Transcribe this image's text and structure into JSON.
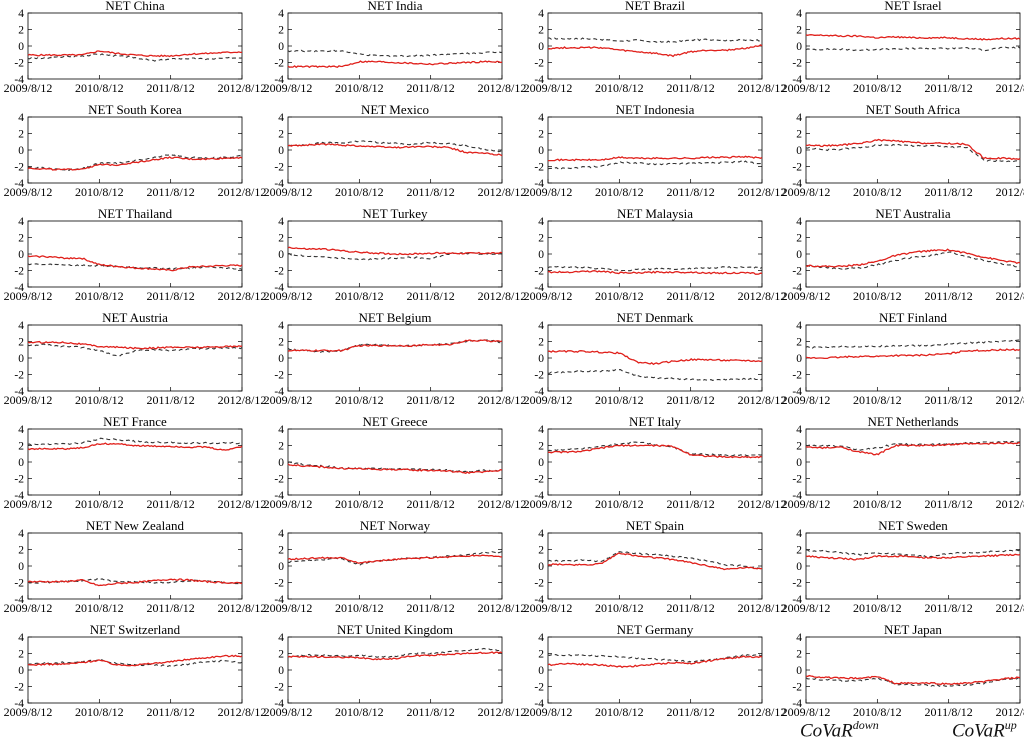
{
  "chart_data": {
    "type": "line",
    "x_ticks": [
      "2009/8/12",
      "2010/8/12",
      "2011/8/12",
      "2012/8/12"
    ],
    "ylim": [
      -4,
      4
    ],
    "y_ticks": [
      "4",
      "2",
      "0",
      "-2",
      "-4"
    ],
    "legend": {
      "placement": "bottom-right",
      "series": [
        {
          "name": "CoVaR",
          "sup": "down",
          "color": "#333333",
          "style": "dashed"
        },
        {
          "name": "CoVaR",
          "sup": "up",
          "color": "#e0201b",
          "style": "solid"
        }
      ]
    },
    "panels": [
      {
        "title": "NET China",
        "down": [
          -1.5,
          -1.5,
          -1.3,
          -1.2,
          -1.0,
          -1.2,
          -1.4,
          -1.8,
          -1.6,
          -1.5,
          -1.6,
          -1.5,
          -1.4
        ],
        "up": [
          -1.1,
          -1.1,
          -1.1,
          -1.1,
          -0.6,
          -0.9,
          -1.1,
          -1.2,
          -1.2,
          -1.0,
          -0.9,
          -0.8,
          -0.7
        ]
      },
      {
        "title": "NET India",
        "down": [
          -0.6,
          -0.6,
          -0.6,
          -0.6,
          -1.0,
          -1.2,
          -1.2,
          -1.2,
          -1.1,
          -1.0,
          -0.9,
          -0.8,
          -0.7
        ],
        "up": [
          -2.5,
          -2.5,
          -2.5,
          -2.5,
          -1.9,
          -1.9,
          -2.0,
          -2.1,
          -2.2,
          -2.1,
          -2.0,
          -1.9,
          -1.9
        ]
      },
      {
        "title": "NET Brazil",
        "down": [
          0.9,
          0.9,
          0.9,
          0.8,
          0.6,
          0.7,
          0.5,
          0.5,
          0.7,
          0.8,
          0.7,
          0.7,
          0.7
        ],
        "up": [
          -0.3,
          -0.2,
          -0.2,
          -0.2,
          -0.5,
          -0.7,
          -0.9,
          -1.2,
          -0.7,
          -0.5,
          -0.5,
          -0.3,
          0.1
        ]
      },
      {
        "title": "NET Israel",
        "down": [
          -0.4,
          -0.4,
          -0.4,
          -0.5,
          -0.4,
          -0.4,
          -0.3,
          -0.3,
          -0.3,
          -0.2,
          -0.5,
          -0.2,
          -0.2
        ],
        "up": [
          1.3,
          1.3,
          1.2,
          1.2,
          1.0,
          1.1,
          1.0,
          1.0,
          1.0,
          0.9,
          0.8,
          0.9,
          0.9
        ]
      },
      {
        "title": "NET South Korea",
        "down": [
          -2.1,
          -2.2,
          -2.4,
          -2.3,
          -1.6,
          -1.6,
          -1.3,
          -0.9,
          -0.6,
          -0.9,
          -1.0,
          -0.9,
          -0.7
        ],
        "up": [
          -2.2,
          -2.3,
          -2.4,
          -2.3,
          -1.8,
          -1.8,
          -1.5,
          -1.2,
          -0.9,
          -1.1,
          -1.1,
          -1.0,
          -0.9
        ]
      },
      {
        "title": "NET Mexico",
        "down": [
          0.5,
          0.6,
          0.9,
          0.8,
          1.1,
          0.9,
          0.8,
          0.7,
          0.9,
          0.8,
          0.5,
          0.1,
          -0.2
        ],
        "up": [
          0.5,
          0.6,
          0.7,
          0.6,
          0.5,
          0.4,
          0.3,
          0.4,
          0.4,
          0.3,
          -0.3,
          -0.4,
          -0.6
        ]
      },
      {
        "title": "NET Indonesia",
        "down": [
          -2.2,
          -2.2,
          -2.1,
          -2.0,
          -1.5,
          -1.6,
          -1.7,
          -1.7,
          -1.6,
          -1.6,
          -1.5,
          -1.4,
          -1.7
        ],
        "up": [
          -1.2,
          -1.2,
          -1.2,
          -1.2,
          -0.9,
          -1.0,
          -1.0,
          -1.0,
          -1.0,
          -0.9,
          -0.9,
          -0.8,
          -1.0
        ]
      },
      {
        "title": "NET South Africa",
        "down": [
          0.3,
          0.0,
          0.1,
          0.3,
          0.6,
          0.6,
          0.5,
          0.5,
          0.4,
          0.3,
          -1.3,
          -1.3,
          -1.4
        ],
        "up": [
          0.6,
          0.5,
          0.6,
          0.8,
          1.2,
          1.1,
          0.9,
          0.8,
          0.8,
          0.7,
          -1.0,
          -1.0,
          -1.1
        ]
      },
      {
        "title": "NET Thailand",
        "down": [
          -1.2,
          -1.3,
          -1.3,
          -1.4,
          -1.4,
          -1.5,
          -1.6,
          -1.7,
          -1.8,
          -1.7,
          -1.6,
          -1.7,
          -1.8
        ],
        "up": [
          -0.3,
          -0.3,
          -0.5,
          -0.5,
          -1.3,
          -1.5,
          -1.7,
          -1.8,
          -2.0,
          -1.6,
          -1.5,
          -1.4,
          -1.4
        ]
      },
      {
        "title": "NET Turkey",
        "down": [
          0.0,
          -0.3,
          -0.4,
          -0.5,
          -0.7,
          -0.6,
          -0.5,
          -0.4,
          -0.6,
          0.0,
          0.1,
          0.0,
          0.1
        ],
        "up": [
          0.8,
          0.6,
          0.6,
          0.4,
          0.2,
          0.1,
          0.0,
          0.0,
          0.1,
          0.1,
          0.1,
          0.1,
          0.1
        ]
      },
      {
        "title": "NET Malaysia",
        "down": [
          -1.6,
          -1.6,
          -1.6,
          -1.8,
          -2.0,
          -1.9,
          -1.8,
          -1.8,
          -1.8,
          -1.7,
          -1.6,
          -1.6,
          -1.7
        ],
        "up": [
          -2.2,
          -2.2,
          -2.1,
          -2.1,
          -2.3,
          -2.3,
          -2.2,
          -2.2,
          -2.2,
          -2.3,
          -2.3,
          -2.3,
          -2.4
        ]
      },
      {
        "title": "NET Australia",
        "down": [
          -1.4,
          -1.6,
          -1.8,
          -1.7,
          -1.3,
          -0.8,
          -0.4,
          -0.2,
          0.2,
          -0.3,
          -0.8,
          -1.2,
          -1.6
        ],
        "up": [
          -1.4,
          -1.5,
          -1.5,
          -1.3,
          -0.9,
          -0.2,
          0.2,
          0.4,
          0.5,
          0.1,
          -0.4,
          -0.8,
          -1.1
        ]
      },
      {
        "title": "NET Austria",
        "down": [
          1.5,
          1.6,
          1.4,
          1.3,
          0.9,
          0.2,
          0.9,
          1.0,
          0.9,
          1.1,
          1.1,
          1.2,
          1.2
        ],
        "up": [
          1.9,
          1.9,
          1.9,
          1.7,
          1.4,
          1.3,
          1.2,
          1.2,
          1.3,
          1.3,
          1.3,
          1.4,
          1.4
        ]
      },
      {
        "title": "NET Belgium",
        "down": [
          1.1,
          0.9,
          0.7,
          0.9,
          1.6,
          1.6,
          1.5,
          1.5,
          1.6,
          1.7,
          2.0,
          2.2,
          1.9
        ],
        "up": [
          0.9,
          0.9,
          0.9,
          0.9,
          1.5,
          1.5,
          1.5,
          1.5,
          1.6,
          1.6,
          2.1,
          2.1,
          2.0
        ]
      },
      {
        "title": "NET Denmark",
        "down": [
          -1.8,
          -1.7,
          -1.6,
          -1.6,
          -1.4,
          -2.2,
          -2.4,
          -2.5,
          -2.6,
          -2.7,
          -2.6,
          -2.5,
          -2.6
        ],
        "up": [
          0.8,
          0.8,
          0.8,
          0.7,
          0.6,
          -0.5,
          -0.7,
          -0.4,
          -0.2,
          -0.2,
          -0.3,
          -0.3,
          -0.4
        ]
      },
      {
        "title": "NET Finland",
        "down": [
          1.3,
          1.3,
          1.4,
          1.4,
          1.4,
          1.5,
          1.5,
          1.5,
          1.7,
          1.8,
          1.9,
          2.0,
          2.1
        ],
        "up": [
          0.0,
          0.0,
          0.1,
          0.2,
          0.2,
          0.3,
          0.3,
          0.4,
          0.5,
          0.9,
          0.9,
          1.0,
          1.0
        ]
      },
      {
        "title": "NET France",
        "down": [
          2.1,
          2.2,
          2.2,
          2.3,
          2.8,
          2.7,
          2.5,
          2.4,
          2.4,
          2.3,
          2.3,
          2.3,
          2.3
        ],
        "up": [
          1.6,
          1.6,
          1.6,
          1.7,
          2.2,
          2.2,
          2.0,
          1.9,
          1.9,
          1.8,
          1.8,
          1.4,
          1.9
        ]
      },
      {
        "title": "NET Greece",
        "down": [
          0.0,
          -0.4,
          -0.5,
          -0.7,
          -0.8,
          -0.8,
          -0.8,
          -0.9,
          -0.9,
          -1.0,
          -1.2,
          -1.0,
          -1.1
        ],
        "up": [
          -0.3,
          -0.5,
          -0.6,
          -0.8,
          -0.8,
          -0.9,
          -0.9,
          -1.0,
          -1.0,
          -1.1,
          -1.3,
          -1.2,
          -1.0
        ]
      },
      {
        "title": "NET Italy",
        "down": [
          1.4,
          1.5,
          1.6,
          1.9,
          2.2,
          2.4,
          2.1,
          1.8,
          1.0,
          0.9,
          0.8,
          0.8,
          0.8
        ],
        "up": [
          1.2,
          1.2,
          1.3,
          1.7,
          2.0,
          2.0,
          2.0,
          1.9,
          0.9,
          0.7,
          0.6,
          0.6,
          0.6
        ]
      },
      {
        "title": "NET Netherlands",
        "down": [
          2.0,
          2.0,
          1.9,
          1.5,
          1.7,
          2.2,
          2.1,
          2.1,
          2.2,
          2.3,
          2.4,
          2.5,
          2.4
        ],
        "up": [
          1.8,
          1.7,
          1.8,
          1.2,
          0.9,
          2.0,
          2.0,
          2.0,
          2.1,
          2.2,
          2.2,
          2.3,
          2.3
        ]
      },
      {
        "title": "NET New Zealand",
        "down": [
          -2.0,
          -2.0,
          -1.9,
          -1.8,
          -1.6,
          -1.9,
          -1.9,
          -2.0,
          -2.0,
          -1.8,
          -1.8,
          -2.0,
          -2.2
        ],
        "up": [
          -1.9,
          -1.9,
          -1.9,
          -1.7,
          -2.4,
          -2.1,
          -2.0,
          -1.8,
          -1.6,
          -1.7,
          -1.9,
          -2.0,
          -2.1
        ]
      },
      {
        "title": "NET Norway",
        "down": [
          0.5,
          0.6,
          0.8,
          0.9,
          0.2,
          0.6,
          0.8,
          1.0,
          1.1,
          1.2,
          1.3,
          1.6,
          1.7
        ],
        "up": [
          0.8,
          0.9,
          1.0,
          1.0,
          0.4,
          0.6,
          0.8,
          0.9,
          1.0,
          1.1,
          1.2,
          1.3,
          1.1
        ]
      },
      {
        "title": "NET Spain",
        "down": [
          0.6,
          0.6,
          0.7,
          0.5,
          1.7,
          1.5,
          1.4,
          1.2,
          0.9,
          0.6,
          0.1,
          0.0,
          -0.3
        ],
        "up": [
          0.2,
          0.2,
          0.1,
          0.3,
          1.6,
          1.2,
          1.0,
          0.8,
          0.4,
          0.0,
          -0.4,
          -0.2,
          -0.3
        ]
      },
      {
        "title": "NET Sweden",
        "down": [
          1.9,
          1.8,
          1.6,
          1.4,
          1.6,
          1.4,
          1.3,
          1.1,
          1.5,
          1.6,
          1.7,
          1.8,
          1.9
        ],
        "up": [
          1.2,
          1.0,
          0.9,
          0.8,
          1.2,
          1.2,
          1.1,
          1.0,
          1.0,
          1.1,
          1.2,
          1.3,
          1.4
        ]
      },
      {
        "title": "NET Switzerland",
        "down": [
          0.7,
          0.8,
          0.9,
          1.0,
          1.2,
          0.8,
          0.6,
          0.6,
          0.5,
          0.7,
          1.0,
          1.1,
          0.9
        ],
        "up": [
          0.6,
          0.7,
          0.7,
          0.9,
          1.2,
          0.6,
          0.6,
          0.8,
          1.0,
          1.3,
          1.5,
          1.7,
          1.7
        ]
      },
      {
        "title": "NET United Kingdom",
        "down": [
          1.6,
          1.8,
          1.8,
          1.7,
          1.8,
          1.6,
          1.6,
          2.0,
          2.0,
          2.2,
          2.4,
          2.6,
          2.3
        ],
        "up": [
          1.6,
          1.6,
          1.6,
          1.5,
          1.5,
          1.3,
          1.4,
          1.7,
          1.8,
          1.9,
          2.0,
          2.1,
          2.1
        ]
      },
      {
        "title": "NET Germany",
        "down": [
          1.8,
          1.8,
          1.8,
          1.7,
          1.6,
          1.4,
          1.3,
          1.2,
          1.0,
          1.2,
          1.5,
          1.8,
          1.8
        ],
        "up": [
          0.6,
          0.8,
          0.7,
          0.6,
          0.4,
          0.5,
          0.7,
          0.9,
          0.8,
          1.1,
          1.4,
          1.6,
          1.6
        ]
      },
      {
        "title": "NET Japan",
        "down": [
          -1.0,
          -1.2,
          -1.3,
          -1.3,
          -1.0,
          -1.7,
          -1.8,
          -1.9,
          -1.9,
          -1.8,
          -1.6,
          -1.2,
          -1.0
        ],
        "up": [
          -0.7,
          -0.9,
          -1.0,
          -1.0,
          -0.8,
          -1.6,
          -1.6,
          -1.6,
          -1.7,
          -1.6,
          -1.4,
          -1.1,
          -0.9
        ]
      }
    ]
  }
}
